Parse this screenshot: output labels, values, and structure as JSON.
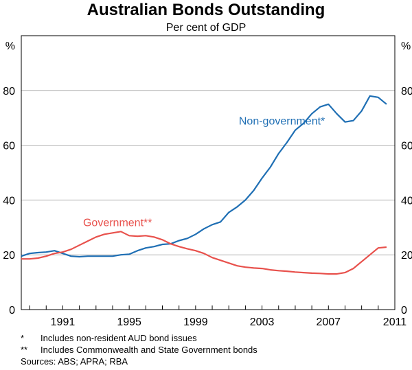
{
  "chart_data": {
    "type": "line",
    "title": "Australian Bonds Outstanding",
    "subtitle": "Per cent of GDP",
    "ylabel_left": "%",
    "ylabel_right": "%",
    "ylim": [
      0,
      100
    ],
    "yticks": [
      0,
      20,
      40,
      60,
      80
    ],
    "xlim": [
      1988.5,
      2011.0
    ],
    "xticks": [
      1991,
      1995,
      1999,
      2003,
      2007,
      2011
    ],
    "colors": {
      "Non-government": "#1f6fb4",
      "Government": "#e8514c"
    },
    "series": [
      {
        "name": "Non-government",
        "label": "Non-government*",
        "x": [
          1988.5,
          1989.0,
          1989.5,
          1990.0,
          1990.5,
          1991.0,
          1991.5,
          1992.0,
          1992.5,
          1993.0,
          1993.5,
          1994.0,
          1994.5,
          1995.0,
          1995.5,
          1996.0,
          1996.5,
          1997.0,
          1997.5,
          1998.0,
          1998.5,
          1999.0,
          1999.5,
          2000.0,
          2000.5,
          2001.0,
          2001.5,
          2002.0,
          2002.5,
          2003.0,
          2003.5,
          2004.0,
          2004.5,
          2005.0,
          2005.5,
          2006.0,
          2006.5,
          2007.0,
          2007.5,
          2008.0,
          2008.5,
          2009.0,
          2009.5,
          2010.0,
          2010.5
        ],
        "y": [
          19.5,
          20.5,
          20.8,
          21.0,
          21.5,
          20.5,
          19.5,
          19.3,
          19.5,
          19.5,
          19.5,
          19.5,
          20.0,
          20.2,
          21.5,
          22.5,
          23.0,
          23.8,
          24.0,
          25.2,
          26.0,
          27.5,
          29.5,
          31.0,
          32.0,
          35.5,
          37.5,
          40.0,
          43.5,
          48.0,
          52.0,
          57.0,
          61.0,
          65.5,
          68.0,
          71.5,
          74.0,
          75.0,
          71.5,
          68.5,
          69.0,
          72.5,
          78.0,
          77.5,
          75.0
        ]
      },
      {
        "name": "Government",
        "label": "Government**",
        "x": [
          1988.5,
          1989.0,
          1989.5,
          1990.0,
          1990.5,
          1991.0,
          1991.5,
          1992.0,
          1992.5,
          1993.0,
          1993.5,
          1994.0,
          1994.5,
          1995.0,
          1995.5,
          1996.0,
          1996.5,
          1997.0,
          1997.5,
          1998.0,
          1998.5,
          1999.0,
          1999.5,
          2000.0,
          2000.5,
          2001.0,
          2001.5,
          2002.0,
          2002.5,
          2003.0,
          2003.5,
          2004.0,
          2004.5,
          2005.0,
          2005.5,
          2006.0,
          2006.5,
          2007.0,
          2007.5,
          2008.0,
          2008.5,
          2009.0,
          2009.5,
          2010.0,
          2010.5
        ],
        "y": [
          18.5,
          18.5,
          18.8,
          19.5,
          20.5,
          21.0,
          22.0,
          23.5,
          25.0,
          26.5,
          27.5,
          28.0,
          28.5,
          27.0,
          26.8,
          27.0,
          26.5,
          25.5,
          24.0,
          23.0,
          22.2,
          21.5,
          20.5,
          19.0,
          18.0,
          17.0,
          16.0,
          15.5,
          15.2,
          15.0,
          14.5,
          14.2,
          14.0,
          13.7,
          13.5,
          13.3,
          13.2,
          13.0,
          13.0,
          13.5,
          15.0,
          17.5,
          20.0,
          22.5,
          22.8
        ]
      }
    ],
    "annotations": [
      "Non-government*",
      "Government**"
    ]
  },
  "footnotes": [
    {
      "mark": "*",
      "text": "Includes non-resident AUD bond issues"
    },
    {
      "mark": "**",
      "text": "Includes Commonwealth and State Government bonds"
    }
  ],
  "sources": "Sources: ABS; APRA; RBA"
}
